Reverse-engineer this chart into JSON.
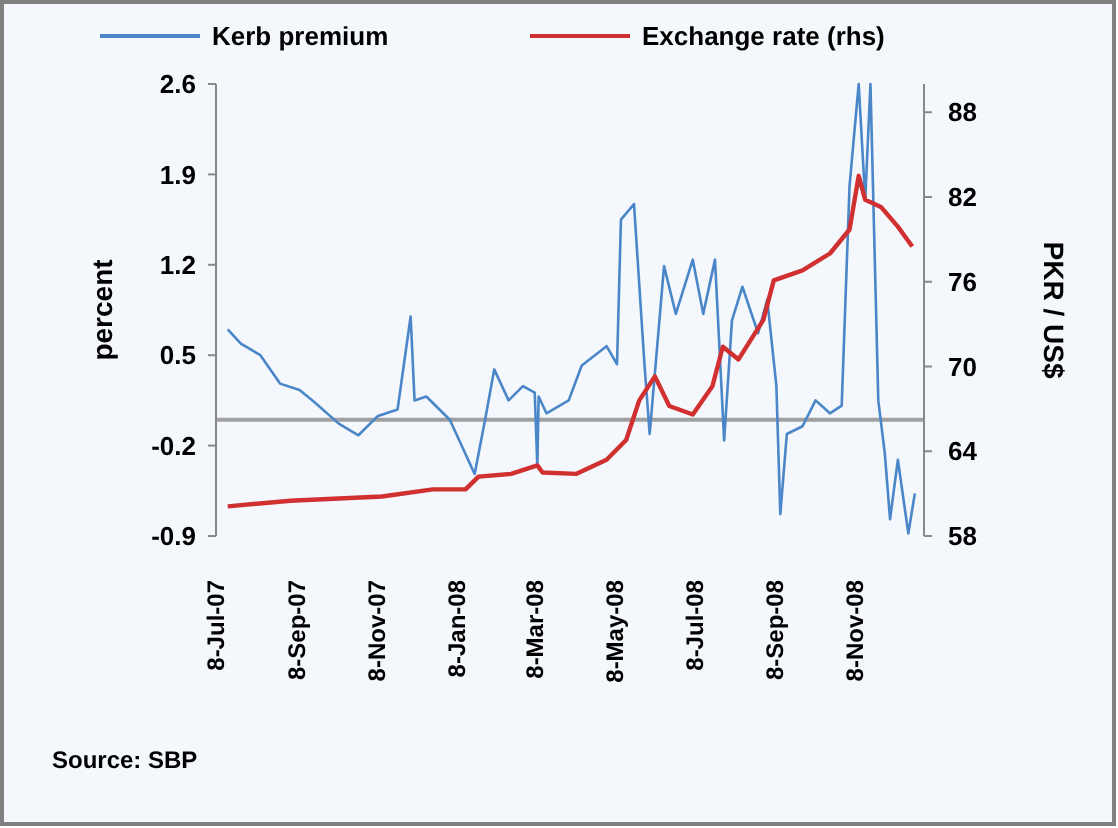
{
  "chart_data": {
    "type": "line",
    "ylabel": "percent",
    "y2label": "PKR / US$",
    "legend": "top",
    "grid": false,
    "annotations": [
      "Source: SBP"
    ],
    "xlim": [
      "2007-07-08",
      "2008-12-31"
    ],
    "xticks": [
      {
        "value": "2007-07-08",
        "label": "8-Jul-07"
      },
      {
        "value": "2007-09-08",
        "label": "8-Sep-07"
      },
      {
        "value": "2007-11-08",
        "label": "8-Nov-07"
      },
      {
        "value": "2008-01-08",
        "label": "8-Jan-08"
      },
      {
        "value": "2008-03-08",
        "label": "8-Mar-08"
      },
      {
        "value": "2008-05-08",
        "label": "8-May-08"
      },
      {
        "value": "2008-07-08",
        "label": "8-Jul-08"
      },
      {
        "value": "2008-09-08",
        "label": "8-Sep-08"
      },
      {
        "value": "2008-11-08",
        "label": "8-Nov-08"
      }
    ],
    "ylim": [
      -0.9,
      2.6
    ],
    "yticks": [
      -0.9,
      -0.2,
      0.5,
      1.2,
      1.9,
      2.6
    ],
    "y2lim": [
      58,
      90
    ],
    "y2ticks": [
      58,
      64,
      70,
      76,
      82,
      88
    ],
    "ref_lines": [
      {
        "axis": "y",
        "value": 0,
        "color": "#a0a0a0"
      }
    ],
    "series": [
      {
        "name": "Kerb premium",
        "color": "#4a86c8",
        "x": [
          "2007-07-17",
          "2007-07-27",
          "2007-08-11",
          "2007-08-26",
          "2007-09-10",
          "2007-09-21",
          "2007-10-10",
          "2007-10-25",
          "2007-11-09",
          "2007-11-24",
          "2007-12-04",
          "2007-12-07",
          "2007-12-16",
          "2008-01-03",
          "2008-01-22",
          "2008-01-30",
          "2008-02-06",
          "2008-02-17",
          "2008-02-28",
          "2008-03-08",
          "2008-03-10",
          "2008-03-11",
          "2008-03-17",
          "2008-04-03",
          "2008-04-13",
          "2008-05-02",
          "2008-05-10",
          "2008-05-13",
          "2008-05-23",
          "2008-05-31",
          "2008-06-04",
          "2008-06-15",
          "2008-06-24",
          "2008-07-07",
          "2008-07-15",
          "2008-07-24",
          "2008-07-31",
          "2008-08-06",
          "2008-08-14",
          "2008-08-26",
          "2008-09-02",
          "2008-09-09",
          "2008-09-12",
          "2008-09-17",
          "2008-09-29",
          "2008-10-09",
          "2008-10-20",
          "2008-10-29",
          "2008-11-04",
          "2008-11-11",
          "2008-11-16",
          "2008-11-20",
          "2008-11-26",
          "2008-12-01",
          "2008-12-05",
          "2008-12-11",
          "2008-12-19",
          "2008-12-24"
        ],
        "values": [
          0.7,
          0.59,
          0.5,
          0.28,
          0.23,
          0.14,
          -0.03,
          -0.12,
          0.03,
          0.08,
          0.8,
          0.15,
          0.18,
          0,
          -0.42,
          0,
          0.39,
          0.15,
          0.26,
          0.21,
          -0.36,
          0.18,
          0.05,
          0.15,
          0.42,
          0.57,
          0.43,
          1.55,
          1.67,
          0.43,
          -0.11,
          1.19,
          0.82,
          1.24,
          0.82,
          1.24,
          -0.16,
          0.77,
          1.03,
          0.67,
          0.93,
          0.26,
          -0.73,
          -0.11,
          -0.05,
          0.15,
          0.05,
          0.11,
          1.81,
          2.6,
          1.7,
          2.6,
          0.15,
          -0.26,
          -0.77,
          -0.31,
          -0.88,
          -0.57
        ]
      },
      {
        "name": "Exchange rate (rhs)",
        "color": "#d03030",
        "axis": "y2",
        "x": [
          "2007-07-17",
          "2007-09-03",
          "2007-11-12",
          "2007-12-21",
          "2008-01-15",
          "2008-01-25",
          "2008-02-19",
          "2008-03-10",
          "2008-03-14",
          "2008-04-09",
          "2008-05-02",
          "2008-05-17",
          "2008-05-27",
          "2008-06-08",
          "2008-06-19",
          "2008-07-07",
          "2008-07-22",
          "2008-07-30",
          "2008-08-11",
          "2008-08-30",
          "2008-09-07",
          "2008-09-29",
          "2008-10-20",
          "2008-11-04",
          "2008-11-11",
          "2008-11-16",
          "2008-11-28",
          "2008-12-11",
          "2008-12-22"
        ],
        "values": [
          60.1,
          60.5,
          60.8,
          61.3,
          61.3,
          62.2,
          62.4,
          63.0,
          62.5,
          62.4,
          63.4,
          64.8,
          67.6,
          69.3,
          67.2,
          66.6,
          68.6,
          71.4,
          70.5,
          73.3,
          76.1,
          76.8,
          78.0,
          79.7,
          83.5,
          81.8,
          81.3,
          79.9,
          78.5
        ]
      }
    ]
  }
}
